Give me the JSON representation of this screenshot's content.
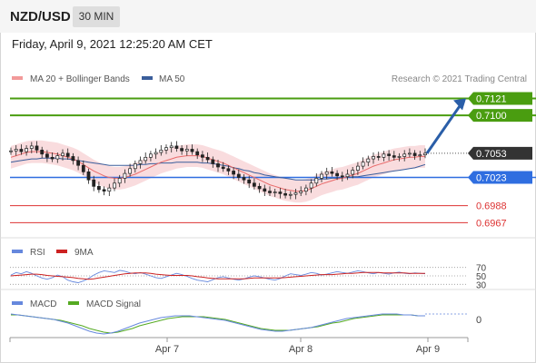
{
  "header": {
    "symbol": "NZD/USD",
    "timeframe": "30 MIN"
  },
  "datetime": "Friday, April 9, 2021 12:25:20 AM CET",
  "legend": {
    "ma20": "MA 20 + Bollinger Bands",
    "ma50": "MA 50",
    "credit": "Research © 2021 Trading Central",
    "rsi": "RSI",
    "rsi_ma": "9MA",
    "macd": "MACD",
    "macd_signal": "MACD Signal"
  },
  "colors": {
    "resistance": "#4a9d10",
    "support": "#2f6ee0",
    "pivot": "#333333",
    "low_levels": "#dd3333",
    "arrow": "#2a5ea8",
    "bollinger": "#f6cdd0",
    "ma20": "#e86a6a",
    "ma50": "#3b5e9b",
    "rsi": "#6688dd",
    "rsi_ma": "#cc2222",
    "macd": "#6688dd",
    "macd_signal": "#55aa22"
  },
  "chart_data": {
    "type": "candlestick",
    "x_ticks": [
      "Apr 7",
      "Apr 8",
      "Apr 9"
    ],
    "ylim": [
      0.6955,
      0.7135
    ],
    "price_levels": [
      {
        "label": "0.7121",
        "value": 0.7121,
        "kind": "resistance"
      },
      {
        "label": "0.7100",
        "value": 0.71,
        "kind": "resistance"
      },
      {
        "label": "0.7053",
        "value": 0.7053,
        "kind": "pivot"
      },
      {
        "label": "0.7023",
        "value": 0.7023,
        "kind": "support"
      },
      {
        "label": "0.6988",
        "value": 0.6988,
        "kind": "low"
      },
      {
        "label": "0.6967",
        "value": 0.6967,
        "kind": "low"
      }
    ],
    "close": [
      0.7056,
      0.7058,
      0.7055,
      0.7059,
      0.7062,
      0.7057,
      0.7052,
      0.7048,
      0.7046,
      0.705,
      0.7053,
      0.7049,
      0.7044,
      0.7038,
      0.703,
      0.702,
      0.7012,
      0.7008,
      0.7006,
      0.701,
      0.7016,
      0.7022,
      0.7028,
      0.7034,
      0.704,
      0.7044,
      0.7048,
      0.7052,
      0.7054,
      0.7057,
      0.706,
      0.7062,
      0.7059,
      0.7056,
      0.7058,
      0.7055,
      0.7051,
      0.7048,
      0.7045,
      0.704,
      0.7036,
      0.7034,
      0.7031,
      0.7027,
      0.7023,
      0.702,
      0.7016,
      0.7012,
      0.7009,
      0.7006,
      0.7004,
      0.7005,
      0.7003,
      0.7001,
      0.7002,
      0.7004,
      0.7006,
      0.701,
      0.7016,
      0.7022,
      0.7027,
      0.703,
      0.7028,
      0.7025,
      0.7024,
      0.7027,
      0.7032,
      0.7037,
      0.7042,
      0.7046,
      0.7049,
      0.7048,
      0.7052,
      0.705,
      0.7048,
      0.7049,
      0.7052,
      0.7053,
      0.705,
      0.7051,
      0.7053
    ],
    "ma20": [
      0.7048,
      0.705,
      0.7052,
      0.7054,
      0.7055,
      0.7055,
      0.7055,
      0.7054,
      0.7053,
      0.7052,
      0.705,
      0.7048,
      0.7046,
      0.7043,
      0.7039,
      0.7035,
      0.7031,
      0.7028,
      0.7025,
      0.7023,
      0.7022,
      0.7022,
      0.7023,
      0.7025,
      0.7027,
      0.703,
      0.7033,
      0.7036,
      0.7039,
      0.7042,
      0.7044,
      0.7046,
      0.7048,
      0.7049,
      0.705,
      0.705,
      0.705,
      0.7049,
      0.7047,
      0.7045,
      0.7043,
      0.7041,
      0.7038,
      0.7035,
      0.7032,
      0.7029,
      0.7026,
      0.7023,
      0.702,
      0.7017,
      0.7014,
      0.7012,
      0.701,
      0.7008,
      0.7007,
      0.7006,
      0.7006,
      0.7007,
      0.7009,
      0.7012,
      0.7015,
      0.7017,
      0.7019,
      0.7021,
      0.7022,
      0.7024,
      0.7026,
      0.7028,
      0.7031,
      0.7034,
      0.7037,
      0.7039,
      0.7041,
      0.7043,
      0.7045,
      0.7046,
      0.7047,
      0.7048,
      0.7048,
      0.7049,
      0.7049
    ],
    "bb_width": 0.0014,
    "ma50": [
      0.7042,
      0.7043,
      0.7044,
      0.7045,
      0.7046,
      0.7046,
      0.7047,
      0.7047,
      0.7047,
      0.7047,
      0.7046,
      0.7046,
      0.7045,
      0.7044,
      0.7043,
      0.7042,
      0.7041,
      0.704,
      0.7039,
      0.7038,
      0.7038,
      0.7038,
      0.7038,
      0.7038,
      0.7038,
      0.7039,
      0.7039,
      0.704,
      0.704,
      0.7041,
      0.7041,
      0.7041,
      0.7042,
      0.7042,
      0.7042,
      0.7042,
      0.7042,
      0.7041,
      0.7041,
      0.704,
      0.7039,
      0.7038,
      0.7037,
      0.7035,
      0.7034,
      0.7032,
      0.7031,
      0.7029,
      0.7028,
      0.7026,
      0.7025,
      0.7024,
      0.7023,
      0.7022,
      0.7021,
      0.702,
      0.702,
      0.702,
      0.702,
      0.702,
      0.7021,
      0.7021,
      0.7022,
      0.7022,
      0.7023,
      0.7023,
      0.7024,
      0.7024,
      0.7025,
      0.7026,
      0.7027,
      0.7028,
      0.7029,
      0.703,
      0.7031,
      0.7032,
      0.7033,
      0.7034,
      0.7035,
      0.7037,
      0.7039
    ],
    "projection": {
      "from": 0.7053,
      "to": 0.7121
    },
    "rsi": {
      "ylim": [
        20,
        80
      ],
      "levels": [
        70,
        50,
        30
      ],
      "rsi": [
        52,
        58,
        55,
        60,
        56,
        50,
        45,
        42,
        46,
        52,
        48,
        40,
        36,
        34,
        38,
        44,
        52,
        58,
        62,
        60,
        58,
        63,
        61,
        57,
        55,
        58,
        54,
        50,
        46,
        44,
        48,
        52,
        56,
        53,
        49,
        44,
        40,
        38,
        36,
        41,
        46,
        48,
        45,
        42,
        40,
        43,
        47,
        50,
        48,
        45,
        42,
        40,
        44,
        50,
        55,
        53,
        51,
        54,
        58,
        56,
        52,
        54,
        57,
        60,
        58,
        56,
        59,
        62,
        60,
        57,
        55,
        58,
        56,
        54,
        57,
        59,
        56,
        55,
        57,
        56,
        55
      ],
      "ma": [
        50,
        51,
        52,
        53,
        54,
        54,
        53,
        51,
        50,
        49,
        48,
        47,
        46,
        44,
        43,
        42,
        43,
        45,
        47,
        49,
        51,
        53,
        55,
        56,
        57,
        57,
        57,
        56,
        54,
        53,
        52,
        51,
        51,
        51,
        51,
        50,
        48,
        47,
        45,
        44,
        43,
        43,
        43,
        43,
        43,
        43,
        44,
        45,
        45,
        45,
        45,
        45,
        45,
        46,
        47,
        48,
        49,
        50,
        51,
        52,
        53,
        53,
        53,
        54,
        55,
        56,
        56,
        57,
        58,
        58,
        58,
        58,
        57,
        57,
        57,
        57,
        57,
        56,
        56,
        56,
        56
      ]
    },
    "macd": {
      "ylim": [
        -0.0018,
        0.0012
      ],
      "zero_label": "0",
      "macd": [
        0.0006,
        0.0005,
        0.0004,
        0.0003,
        0.0002,
        0.0001,
        0.0,
        -0.0002,
        -0.0004,
        -0.0007,
        -0.001,
        -0.0013,
        -0.0015,
        -0.0016,
        -0.0015,
        -0.0013,
        -0.001,
        -0.0007,
        -0.0004,
        -0.0002,
        0.0,
        0.0002,
        0.0003,
        0.0004,
        0.0004,
        0.0004,
        0.0003,
        0.0002,
        0.0001,
        0.0,
        -0.0001,
        -0.0003,
        -0.0005,
        -0.0007,
        -0.0009,
        -0.0011,
        -0.0012,
        -0.0013,
        -0.0013,
        -0.0012,
        -0.0011,
        -0.001,
        -0.0009,
        -0.0007,
        -0.0005,
        -0.0003,
        -0.0001,
        0.0001,
        0.0002,
        0.0003,
        0.0004,
        0.0005,
        0.0006,
        0.0006,
        0.0006,
        0.0005,
        0.0005,
        0.0004,
        0.0004
      ],
      "signal": [
        0.0005,
        0.0005,
        0.0004,
        0.0003,
        0.0002,
        0.0001,
        0.0,
        -0.0001,
        -0.0003,
        -0.0005,
        -0.0007,
        -0.001,
        -0.0012,
        -0.0014,
        -0.0015,
        -0.0014,
        -0.0012,
        -0.001,
        -0.0007,
        -0.0005,
        -0.0003,
        -0.0001,
        0.0001,
        0.0002,
        0.0003,
        0.0003,
        0.0003,
        0.0003,
        0.0002,
        0.0001,
        0.0,
        -0.0002,
        -0.0004,
        -0.0006,
        -0.0008,
        -0.001,
        -0.0011,
        -0.0012,
        -0.0012,
        -0.0012,
        -0.0011,
        -0.001,
        -0.0009,
        -0.0008,
        -0.0006,
        -0.0004,
        -0.0003,
        -0.0001,
        0.0001,
        0.0002,
        0.0003,
        0.0004,
        0.0005,
        0.0005,
        0.0005,
        0.0005,
        0.0005,
        0.0004,
        0.0004
      ]
    }
  }
}
